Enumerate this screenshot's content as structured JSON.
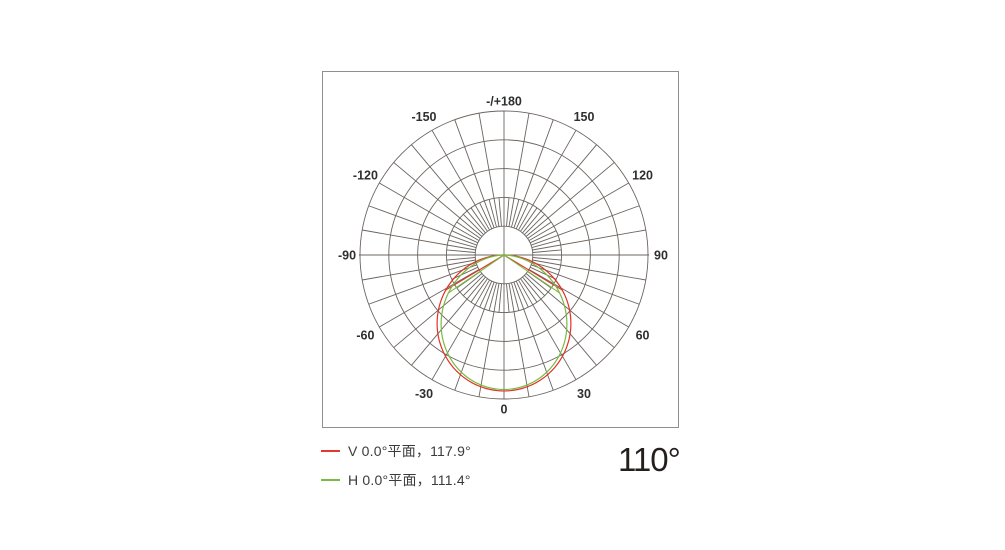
{
  "chart_data": {
    "type": "line",
    "subtype": "polar-photometric-distribution",
    "coordinate": "polar, 0° at bottom (nadir), ±180° at top (zenith), positive angles to the right",
    "grid": {
      "ring_fractions": [
        0.2,
        0.4,
        0.6,
        0.8,
        1.0
      ],
      "outer_radius_px": 144,
      "spoke_step_deg": 10,
      "fine_spoke_step_deg": 5,
      "fine_spoke_band_fractions": [
        0.2,
        0.4
      ]
    },
    "angle_labels": [
      {
        "angle": 0,
        "text": "0"
      },
      {
        "angle": 30,
        "text": "30"
      },
      {
        "angle": 60,
        "text": "60"
      },
      {
        "angle": 90,
        "text": "90"
      },
      {
        "angle": 120,
        "text": "120"
      },
      {
        "angle": 150,
        "text": "150"
      },
      {
        "angle": 180,
        "text": "-/+180"
      },
      {
        "angle": -150,
        "text": "-150"
      },
      {
        "angle": -120,
        "text": "-120"
      },
      {
        "angle": -90,
        "text": "-90"
      },
      {
        "angle": -60,
        "text": "-60"
      },
      {
        "angle": -30,
        "text": "-30"
      }
    ],
    "series": [
      {
        "name": "V 0.0°平面",
        "beam_angle_deg": 117.9,
        "half_angle_deg": 58.95,
        "max_radius_fraction": 0.944,
        "color": "#e03127",
        "model": "r = Rmax * cos(theta)^n with cos(half)^n = 0.5; straight beam-angle lines from center to half-power points"
      },
      {
        "name": "H 0.0°平面",
        "beam_angle_deg": 111.4,
        "half_angle_deg": 55.7,
        "max_radius_fraction": 0.934,
        "color": "#77bb41",
        "model": "r = Rmax * cos(theta)^n with cos(half)^n = 0.5; straight beam-angle lines from center to half-power points"
      }
    ]
  },
  "legend": {
    "items": [
      {
        "label": "V 0.0°平面，117.9°",
        "color": "#e0392e"
      },
      {
        "label": "H 0.0°平面，111.4°",
        "color": "#78bd43"
      }
    ]
  },
  "summary": {
    "beam_angle_label": "110°"
  },
  "style": {
    "grid_color": "#6b6460",
    "axis_label_color": "#2f2f2f",
    "frame_border_color": "#8f8f8f",
    "background": "#ffffff"
  }
}
